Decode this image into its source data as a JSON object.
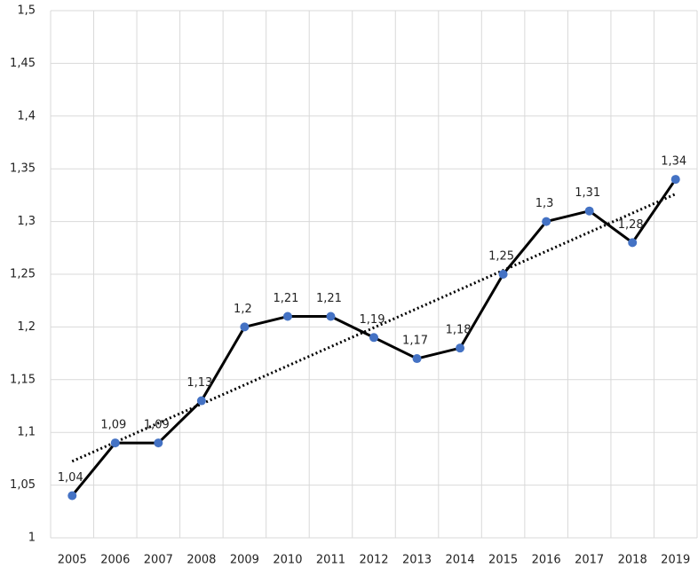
{
  "chart_data": {
    "type": "line",
    "categories": [
      "2005",
      "2006",
      "2007",
      "2008",
      "2009",
      "2010",
      "2011",
      "2012",
      "2013",
      "2014",
      "2015",
      "2016",
      "2017",
      "2018",
      "2019"
    ],
    "values": [
      1.04,
      1.09,
      1.09,
      1.13,
      1.2,
      1.21,
      1.21,
      1.19,
      1.17,
      1.18,
      1.25,
      1.3,
      1.31,
      1.28,
      1.34
    ],
    "value_labels": [
      "1,04",
      "1,09",
      "1,09",
      "1,13",
      "1,2",
      "1,21",
      "1,21",
      "1,19",
      "1,17",
      "1,18",
      "1,25",
      "1,3",
      "1,31",
      "1,28",
      "1,34"
    ],
    "color": "#000000",
    "marker_color": "#4472c4",
    "ylim": [
      1,
      1.5
    ],
    "yticks": [
      1,
      {
        "value": 1.05,
        "label": "1,05"
      },
      {
        "value": 1.1,
        "label": "1,1"
      },
      {
        "value": 1.15,
        "label": "1,15"
      },
      {
        "value": 1.2,
        "label": "1,2"
      },
      {
        "value": 1.25,
        "label": "1,25"
      },
      {
        "value": 1.3,
        "label": "1,3"
      },
      {
        "value": 1.35,
        "label": "1,35"
      },
      {
        "value": 1.4,
        "label": "1,4"
      },
      {
        "value": 1.45,
        "label": "1,45"
      },
      {
        "value": 1.5,
        "label": "1,5"
      }
    ],
    "grid": true,
    "trendline": "linear"
  }
}
